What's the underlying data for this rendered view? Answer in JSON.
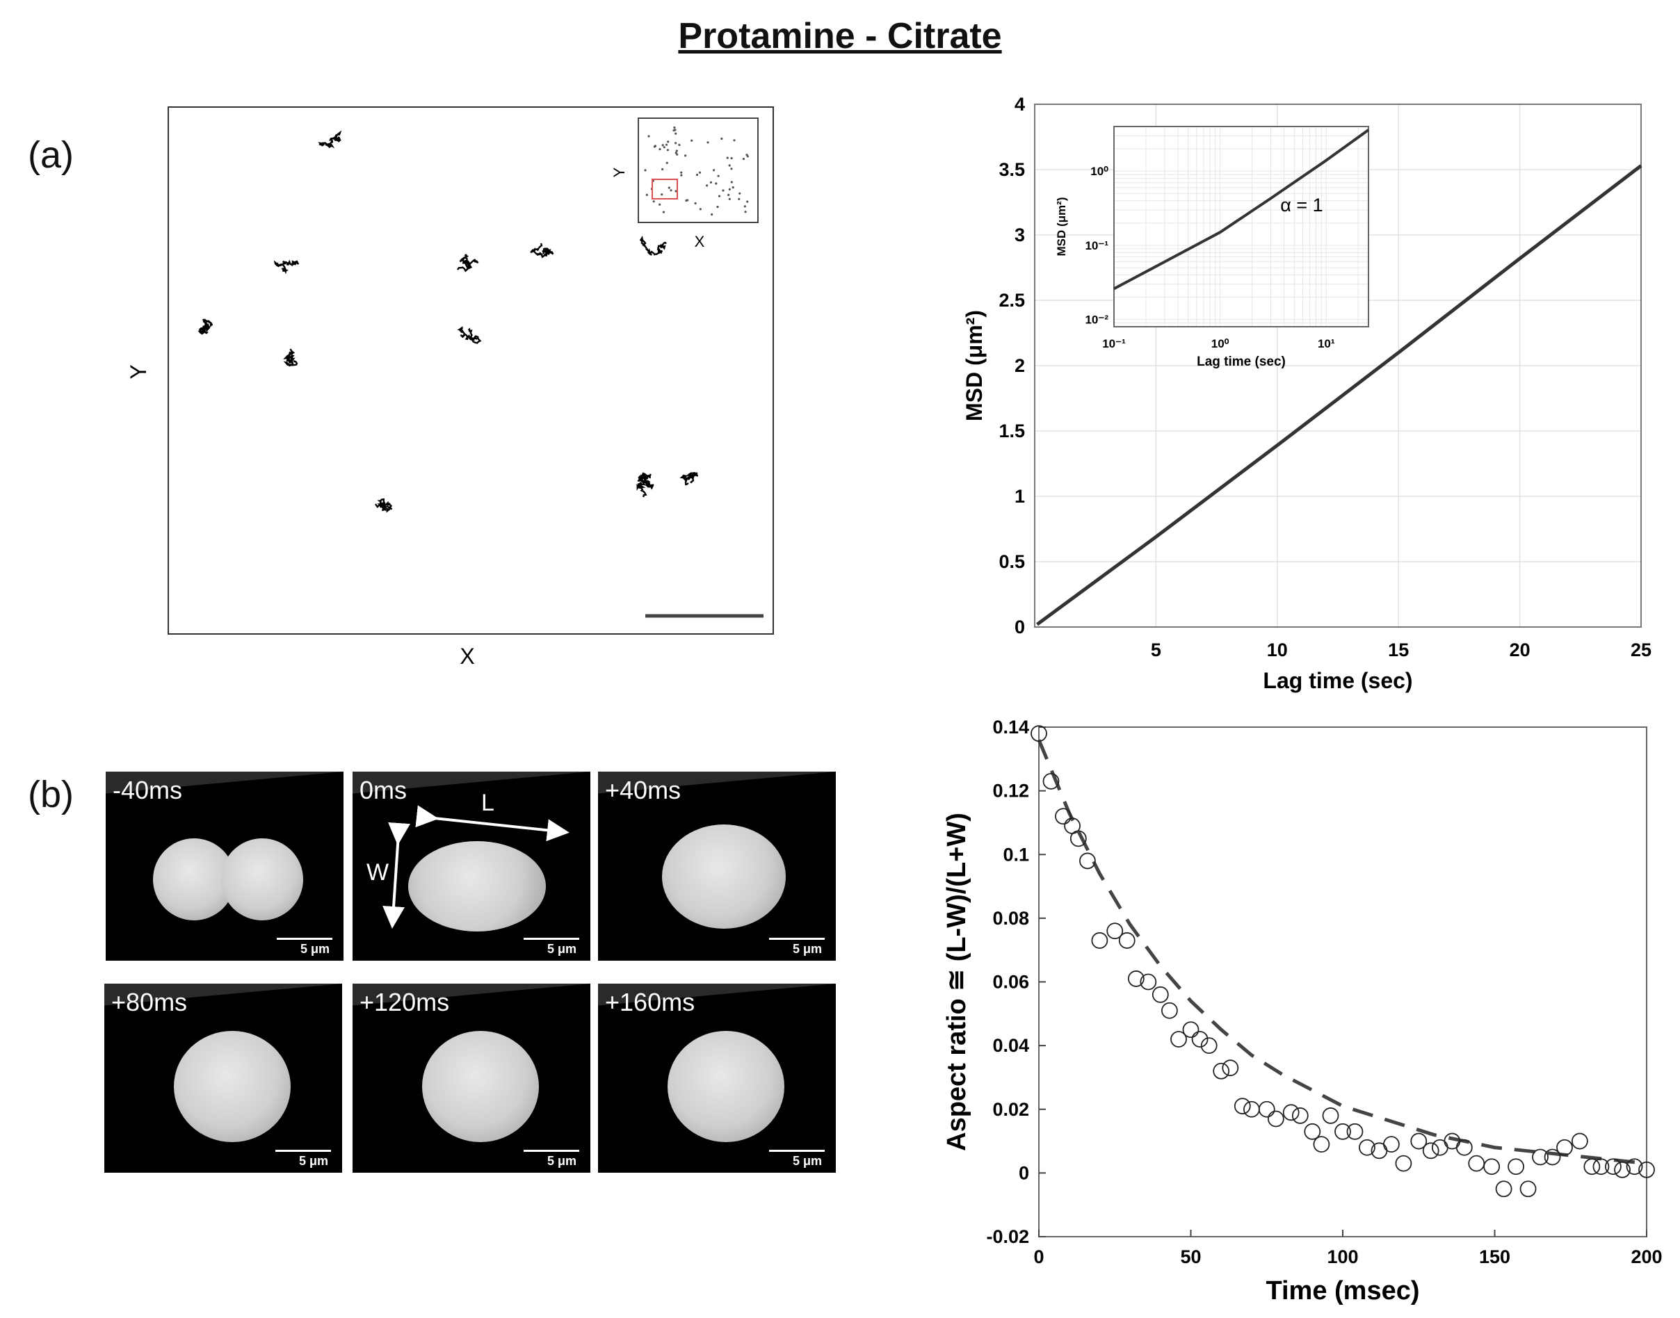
{
  "figure": {
    "title": "Protamine - Citrate"
  },
  "panels": {
    "a": "(a)",
    "b": "(b)"
  },
  "chart_data": [
    {
      "type": "scatter",
      "panel": "trajectories",
      "xlabel": "X",
      "ylabel": "Y",
      "inset": {
        "xlabel": "X",
        "ylabel": "Y"
      },
      "scale_bar": true
    },
    {
      "type": "line",
      "panel": "msd",
      "xlabel": "Lag time (sec)",
      "ylabel": "MSD (μm²)",
      "xlim": [
        0,
        25
      ],
      "ylim": [
        0,
        4
      ],
      "xticks": [
        5,
        10,
        15,
        20,
        25
      ],
      "yticks": [
        0,
        0.5,
        1,
        1.5,
        2,
        2.5,
        3,
        3.5,
        4
      ],
      "grid": true,
      "series": [
        {
          "x": [
            0.1,
            5,
            10,
            15,
            20,
            25
          ],
          "y": [
            0.02,
            0.69,
            1.39,
            2.1,
            2.82,
            3.53
          ]
        }
      ],
      "inset": {
        "scale": "log-log",
        "xlabel": "Lag time (sec)",
        "ylabel": "MSD (μm²)",
        "xlim": [
          0.1,
          25
        ],
        "ylim": [
          0.008,
          4
        ],
        "xticks": [
          "10⁻¹",
          "10⁰",
          "10¹"
        ],
        "yticks": [
          "10⁻²",
          "10⁻¹",
          "10⁰"
        ],
        "annotation": "α = 1",
        "series": [
          {
            "x": [
              0.1,
              0.3,
              1,
              3,
              10,
              25
            ],
            "y": [
              0.026,
              0.06,
              0.15,
              0.43,
              1.4,
              3.6
            ]
          }
        ]
      }
    },
    {
      "type": "scatter",
      "panel": "aspect-ratio",
      "xlabel": "Time (msec)",
      "ylabel": "Aspect ratio ≅ (L-W)/(L+W)",
      "xlim": [
        0,
        200
      ],
      "ylim": [
        -0.02,
        0.14
      ],
      "xticks": [
        0,
        50,
        100,
        150,
        200
      ],
      "yticks": [
        -0.02,
        0,
        0.02,
        0.04,
        0.06,
        0.08,
        0.1,
        0.12,
        0.14
      ],
      "series": [
        {
          "type": "scatter",
          "x": [
            0,
            4,
            8,
            11,
            13,
            16,
            20,
            25,
            29,
            32,
            36,
            40,
            43,
            46,
            50,
            53,
            56,
            60,
            63,
            67,
            70,
            75,
            78,
            83,
            86,
            90,
            93,
            96,
            100,
            104,
            108,
            112,
            116,
            120,
            125,
            129,
            132,
            136,
            140,
            144,
            149,
            153,
            157,
            161,
            165,
            169,
            173,
            178,
            182,
            185,
            189,
            192,
            196,
            200
          ],
          "y": [
            0.138,
            0.123,
            0.112,
            0.109,
            0.105,
            0.098,
            0.073,
            0.076,
            0.073,
            0.061,
            0.06,
            0.056,
            0.051,
            0.042,
            0.045,
            0.042,
            0.04,
            0.032,
            0.033,
            0.021,
            0.02,
            0.02,
            0.017,
            0.019,
            0.018,
            0.013,
            0.009,
            0.018,
            0.013,
            0.013,
            0.008,
            0.007,
            0.009,
            0.003,
            0.01,
            0.007,
            0.008,
            0.01,
            0.008,
            0.003,
            0.002,
            -0.005,
            0.002,
            -0.005,
            0.005,
            0.005,
            0.008,
            0.01,
            0.002,
            0.002,
            0.002,
            0.001,
            0.002,
            0.001
          ]
        },
        {
          "type": "fit-dashed",
          "x": [
            0,
            10,
            20,
            30,
            40,
            50,
            60,
            70,
            80,
            90,
            100,
            110,
            120,
            130,
            140,
            150,
            160,
            170,
            180,
            190,
            200
          ],
          "y": [
            0.136,
            0.113,
            0.094,
            0.078,
            0.065,
            0.054,
            0.045,
            0.037,
            0.031,
            0.026,
            0.021,
            0.018,
            0.015,
            0.012,
            0.01,
            0.008,
            0.007,
            0.006,
            0.005,
            0.004,
            0.003
          ]
        }
      ]
    }
  ],
  "images": {
    "tiles": [
      {
        "time": "-40ms",
        "shape": "doublet"
      },
      {
        "time": "0ms",
        "shape": "ellipse",
        "labels": {
          "L": "L",
          "W": "W"
        }
      },
      {
        "time": "+40ms",
        "shape": "ellipse-soft"
      },
      {
        "time": "+80ms",
        "shape": "round"
      },
      {
        "time": "+120ms",
        "shape": "round"
      },
      {
        "time": "+160ms",
        "shape": "round"
      }
    ],
    "scale_label": "5 μm"
  }
}
